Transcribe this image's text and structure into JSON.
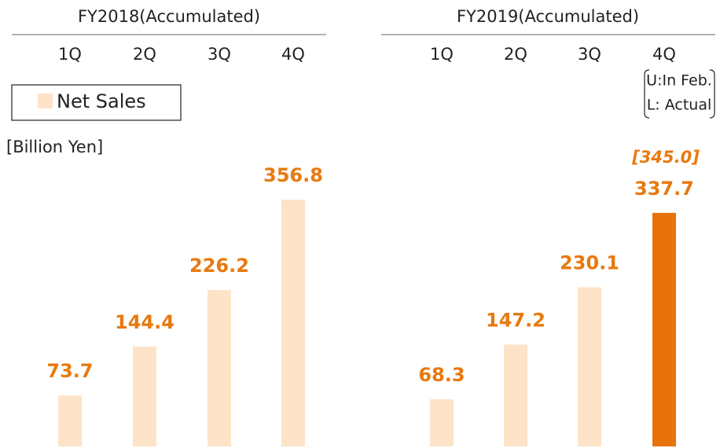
{
  "chart_data": [
    {
      "type": "bar",
      "title": "FY2018(Accumulated)",
      "y_label": "[Billion Yen]",
      "categories": [
        "1Q",
        "2Q",
        "3Q",
        "4Q"
      ],
      "series": [
        {
          "name": "Net Sales",
          "color": "#fde3c8",
          "values": [
            73.7,
            144.4,
            226.2,
            356.8
          ]
        }
      ],
      "label_color": "#e8790f",
      "ylim": [
        0,
        400
      ]
    },
    {
      "type": "bar",
      "title": "FY2019(Accumulated)",
      "categories": [
        "1Q",
        "2Q",
        "3Q",
        "4Q"
      ],
      "series": [
        {
          "colors": [
            "#fde3c8",
            "#fde3c8",
            "#fde3c8",
            "#e8730a"
          ],
          "values": [
            68.3,
            147.2,
            230.1,
            337.7
          ]
        }
      ],
      "plan": {
        "values": [
          null,
          null,
          null,
          345.0
        ],
        "value_labels": [
          null,
          null,
          null,
          "[345.0]"
        ]
      },
      "annotations": [
        "U:In Feb.",
        "L: Actual"
      ],
      "label_color": "#e8790f",
      "ylim": [
        0,
        400
      ]
    }
  ]
}
